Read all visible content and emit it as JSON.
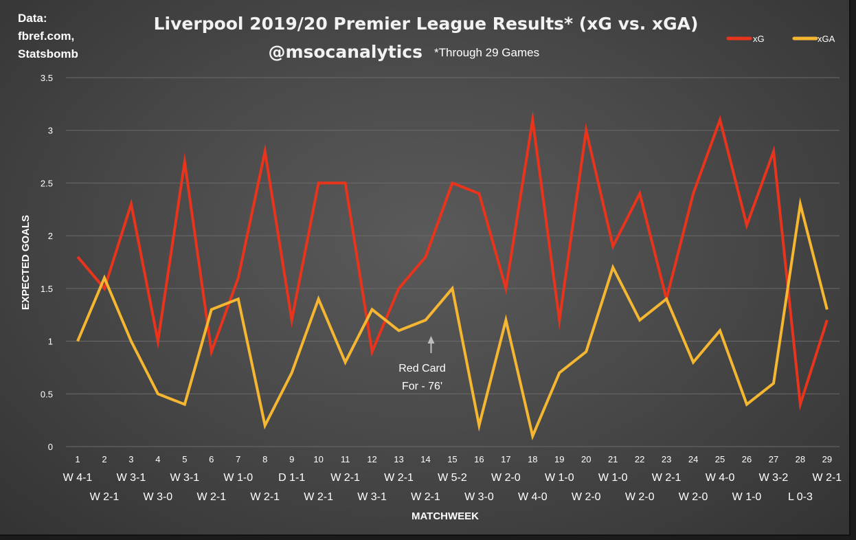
{
  "chart_data": {
    "type": "line",
    "title": "Liverpool 2019/20 Premier League Results* (xG vs. xGA)",
    "subtitle": "@msocanalytics",
    "note": "*Through 29 Games",
    "source": [
      "Data:",
      "fbref.com,",
      "Statsbomb"
    ],
    "xlabel": "MATCHWEEK",
    "ylabel": "EXPECTED GOALS",
    "ylim": [
      0,
      3.5
    ],
    "yticks": [
      "0",
      "0.5",
      "1",
      "1.5",
      "2",
      "2.5",
      "3",
      "3.5"
    ],
    "grid": true,
    "legend": "top-right",
    "categories": [
      "1",
      "2",
      "3",
      "4",
      "5",
      "6",
      "7",
      "8",
      "9",
      "10",
      "11",
      "12",
      "13",
      "14",
      "15",
      "16",
      "17",
      "18",
      "19",
      "20",
      "21",
      "22",
      "23",
      "24",
      "25",
      "26",
      "27",
      "28",
      "29"
    ],
    "results": [
      "W 4-1",
      "W 2-1",
      "W 3-1",
      "W 3-0",
      "W 3-1",
      "W 2-1",
      "W 1-0",
      "W 2-1",
      "D 1-1",
      "W 2-1",
      "W 2-1",
      "W 3-1",
      "W 2-1",
      "W 2-1",
      "W 5-2",
      "W 3-0",
      "W 2-0",
      "W 4-0",
      "W 1-0",
      "W 2-0",
      "W 1-0",
      "W 2-0",
      "W 2-1",
      "W 2-0",
      "W 4-0",
      "W 1-0",
      "W 3-2",
      "L 0-3",
      "W 2-1"
    ],
    "series": [
      {
        "name": "xG",
        "color": "#e8341c",
        "values": [
          1.8,
          1.5,
          2.3,
          1.0,
          2.7,
          0.9,
          1.6,
          2.8,
          1.2,
          2.5,
          2.5,
          0.9,
          1.5,
          1.8,
          2.5,
          2.4,
          1.5,
          3.1,
          1.2,
          3.0,
          1.9,
          2.4,
          1.4,
          2.4,
          3.1,
          2.1,
          2.8,
          0.4,
          1.2
        ]
      },
      {
        "name": "xGA",
        "color": "#f5b731",
        "values": [
          1.0,
          1.6,
          1.0,
          0.5,
          0.4,
          1.3,
          1.4,
          0.2,
          0.7,
          1.4,
          0.8,
          1.3,
          1.1,
          1.2,
          1.5,
          0.2,
          1.2,
          0.1,
          0.7,
          0.9,
          1.7,
          1.2,
          1.4,
          0.8,
          1.1,
          0.4,
          0.6,
          2.3,
          1.3
        ]
      }
    ],
    "annotation": {
      "lines": [
        "Red Card",
        "For - 76'"
      ],
      "matchweek": 14
    }
  }
}
